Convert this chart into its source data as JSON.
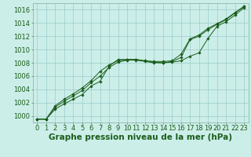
{
  "background_color": "#cceee8",
  "plot_bg_color": "#cceee8",
  "grid_color": "#99cccc",
  "line_color": "#1a5c1a",
  "xlabel": "Graphe pression niveau de la mer (hPa)",
  "xlabel_fontsize": 7.5,
  "tick_fontsize": 6,
  "ylim": [
    999.0,
    1017.0
  ],
  "xlim": [
    -0.5,
    23.5
  ],
  "yticks": [
    1000,
    1002,
    1004,
    1006,
    1008,
    1010,
    1012,
    1014,
    1016
  ],
  "xticks": [
    0,
    1,
    2,
    3,
    4,
    5,
    6,
    7,
    8,
    9,
    10,
    11,
    12,
    13,
    14,
    15,
    16,
    17,
    18,
    19,
    20,
    21,
    22,
    23
  ],
  "series": [
    [
      999.5,
      999.5,
      1001.0,
      1001.8,
      1002.5,
      1003.2,
      1004.5,
      1005.2,
      1007.5,
      1008.5,
      1008.5,
      1008.5,
      1008.3,
      1008.1,
      1008.0,
      1008.1,
      1008.3,
      1009.0,
      1009.5,
      1011.7,
      1013.5,
      1014.2,
      1015.2,
      1016.3
    ],
    [
      999.5,
      999.5,
      1001.3,
      1002.2,
      1003.0,
      1003.8,
      1005.0,
      1006.0,
      1007.3,
      1008.1,
      1008.4,
      1008.4,
      1008.2,
      1008.0,
      1008.0,
      1008.2,
      1008.8,
      1011.5,
      1012.0,
      1013.0,
      1013.8,
      1014.5,
      1015.5,
      1016.5
    ],
    [
      999.5,
      999.5,
      1001.5,
      1002.5,
      1003.3,
      1004.2,
      1005.3,
      1006.7,
      1007.7,
      1008.3,
      1008.5,
      1008.5,
      1008.3,
      1008.2,
      1008.2,
      1008.3,
      1009.3,
      1011.6,
      1012.2,
      1013.2,
      1013.9,
      1014.6,
      1015.6,
      1016.5
    ]
  ],
  "markers": [
    "D",
    "D",
    "D"
  ]
}
